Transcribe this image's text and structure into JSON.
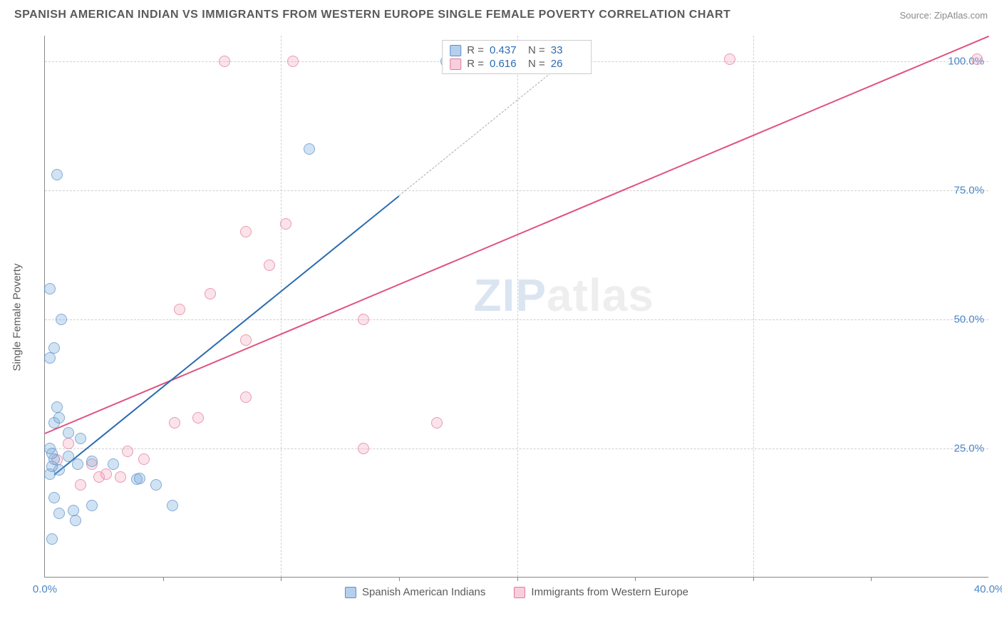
{
  "header": {
    "title": "SPANISH AMERICAN INDIAN VS IMMIGRANTS FROM WESTERN EUROPE SINGLE FEMALE POVERTY CORRELATION CHART",
    "source": "Source: ZipAtlas.com"
  },
  "chart": {
    "type": "scatter",
    "ylabel": "Single Female Poverty",
    "watermark_zip": "ZIP",
    "watermark_atlas": "atlas",
    "xlim": [
      0,
      40
    ],
    "ylim": [
      0,
      105
    ],
    "xtick_major_step": 10,
    "xtick_minor_step": 5,
    "ytick_step": 25,
    "ytick_labels": [
      "25.0%",
      "50.0%",
      "75.0%",
      "100.0%"
    ],
    "xtick_labels_shown": {
      "0": "0.0%",
      "40": "40.0%"
    },
    "grid_color": "#d0d0d0",
    "axis_color": "#888888",
    "background_color": "#ffffff",
    "font_family": "Arial",
    "title_fontsize": 16,
    "label_fontsize": 15,
    "tick_fontsize": 15,
    "tick_color": "#4a86c5",
    "series": [
      {
        "key": "blue",
        "label": "Spanish American Indians",
        "color_fill": "rgba(120,170,220,0.45)",
        "color_stroke": "#5a8fc7",
        "trend_color": "#2b6cb0",
        "R": "0.437",
        "N": "33",
        "trend": {
          "x1": 0.4,
          "y1": 20.0,
          "x2": 15.0,
          "y2": 74.0,
          "extend_to_x": 22.5
        },
        "points": [
          [
            0.3,
            7.5
          ],
          [
            1.3,
            11.0
          ],
          [
            0.6,
            12.5
          ],
          [
            1.2,
            13.0
          ],
          [
            2.0,
            14.0
          ],
          [
            0.4,
            15.5
          ],
          [
            3.9,
            19.0
          ],
          [
            4.0,
            19.2
          ],
          [
            4.7,
            18.0
          ],
          [
            5.4,
            14.0
          ],
          [
            0.2,
            20.0
          ],
          [
            0.6,
            20.8
          ],
          [
            0.3,
            21.5
          ],
          [
            1.4,
            22.0
          ],
          [
            2.0,
            22.5
          ],
          [
            2.9,
            22.0
          ],
          [
            0.4,
            23.0
          ],
          [
            1.0,
            23.5
          ],
          [
            0.3,
            24.0
          ],
          [
            0.2,
            25.0
          ],
          [
            1.5,
            27.0
          ],
          [
            1.0,
            28.0
          ],
          [
            0.4,
            30.0
          ],
          [
            0.6,
            31.0
          ],
          [
            0.5,
            33.0
          ],
          [
            0.2,
            42.5
          ],
          [
            0.4,
            44.5
          ],
          [
            0.7,
            50.0
          ],
          [
            0.2,
            56.0
          ],
          [
            0.5,
            78.0
          ],
          [
            11.2,
            83.0
          ],
          [
            17.0,
            100.0
          ],
          [
            17.2,
            100.0
          ]
        ]
      },
      {
        "key": "pink",
        "label": "Immigrants from Western Europe",
        "color_fill": "rgba(240,160,185,0.4)",
        "color_stroke": "#e07a9a",
        "trend_color": "#e0537e",
        "R": "0.616",
        "N": "26",
        "trend": {
          "x1": 0.0,
          "y1": 28.0,
          "x2": 40.0,
          "y2": 105.0
        },
        "points": [
          [
            1.5,
            18.0
          ],
          [
            2.3,
            19.5
          ],
          [
            2.6,
            20.0
          ],
          [
            3.2,
            19.5
          ],
          [
            2.0,
            22.0
          ],
          [
            0.5,
            22.8
          ],
          [
            4.2,
            23.0
          ],
          [
            3.5,
            24.5
          ],
          [
            1.0,
            26.0
          ],
          [
            5.5,
            30.0
          ],
          [
            6.5,
            31.0
          ],
          [
            13.5,
            25.0
          ],
          [
            8.5,
            35.0
          ],
          [
            16.6,
            30.0
          ],
          [
            8.5,
            46.0
          ],
          [
            13.5,
            50.0
          ],
          [
            5.7,
            52.0
          ],
          [
            7.0,
            55.0
          ],
          [
            9.5,
            60.5
          ],
          [
            8.5,
            67.0
          ],
          [
            10.2,
            68.5
          ],
          [
            7.6,
            100.0
          ],
          [
            10.5,
            100.0
          ],
          [
            17.3,
            100.5
          ],
          [
            29.0,
            100.5
          ],
          [
            39.5,
            100.5
          ]
        ]
      }
    ]
  },
  "legend_bottom": {
    "items": [
      {
        "swatch": "blue",
        "label": "Spanish American Indians"
      },
      {
        "swatch": "pink",
        "label": "Immigrants from Western Europe"
      }
    ]
  }
}
